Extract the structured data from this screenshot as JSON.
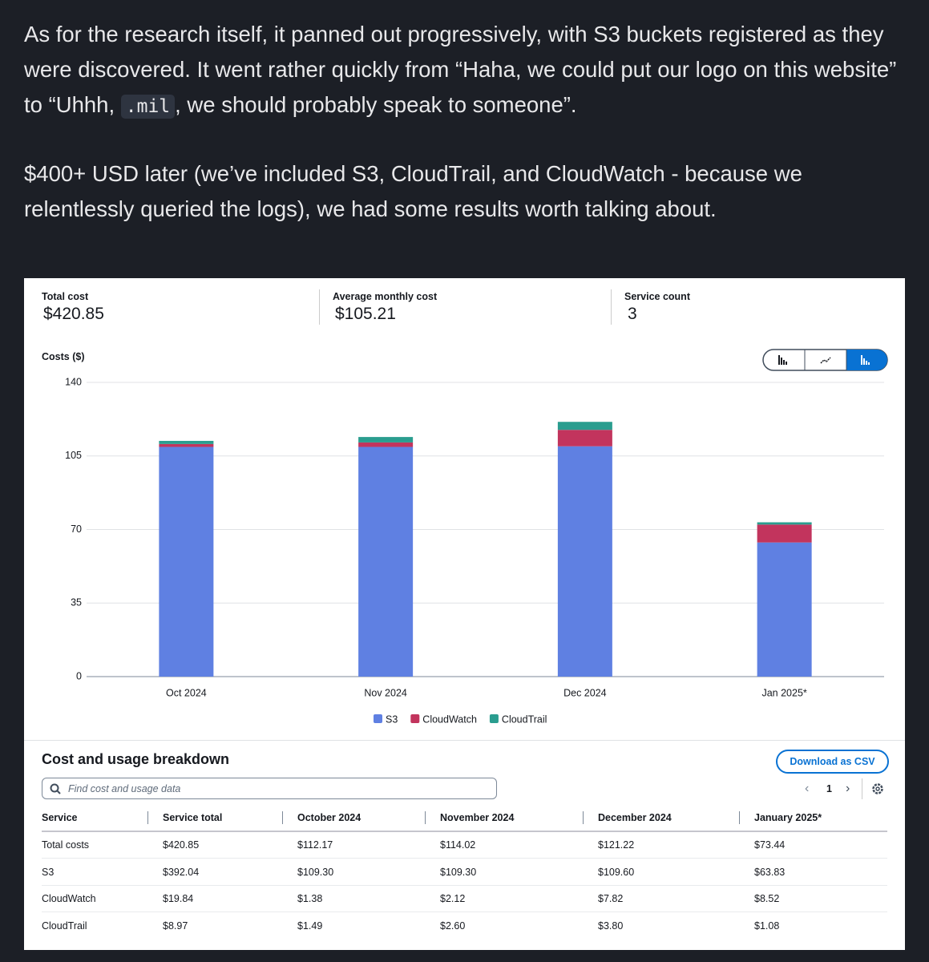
{
  "article": {
    "paragraphs": [
      {
        "before": "As for the research itself, it panned out progressively, with S3 buckets registered as they were discovered. It went rather quickly from “Haha, we could put our logo on this website” to “Uhhh, ",
        "code": ".mil",
        "after": ", we should probably speak to someone”."
      },
      {
        "text": "$400+ USD later (we’ve included S3, CloudTrail, and CloudWatch - because we relentlessly queried the logs), we had some results worth talking about."
      }
    ]
  },
  "summary": [
    {
      "label": "Total cost",
      "value": "$420.85"
    },
    {
      "label": "Average monthly cost",
      "value": "$105.21"
    },
    {
      "label": "Service count",
      "value": "3"
    }
  ],
  "chart_data": {
    "type": "stacked_bar",
    "y_label": "Costs ($)",
    "categories": [
      "Oct 2024",
      "Nov 2024",
      "Dec 2024",
      "Jan 2025*"
    ],
    "series": [
      {
        "name": "S3",
        "color": "#5f80e2",
        "values": [
          109.3,
          109.3,
          109.6,
          63.83
        ]
      },
      {
        "name": "CloudWatch",
        "color": "#c2345d",
        "values": [
          1.38,
          2.12,
          7.82,
          8.52
        ]
      },
      {
        "name": "CloudTrail",
        "color": "#2a9d8f",
        "values": [
          1.49,
          2.6,
          3.8,
          1.08
        ]
      }
    ],
    "ylim": [
      0,
      140
    ],
    "yticks": [
      0,
      35,
      70,
      105,
      140
    ],
    "grid": true
  },
  "breakdown": {
    "title": "Cost and usage breakdown",
    "download": "Download as CSV",
    "search_placeholder": "Find cost and usage data",
    "page": "1",
    "columns": [
      "Service",
      "Service total",
      "October 2024",
      "November 2024",
      "December 2024",
      "January 2025*"
    ],
    "rows": [
      [
        "Total costs",
        "$420.85",
        "$112.17",
        "$114.02",
        "$121.22",
        "$73.44"
      ],
      [
        "S3",
        "$392.04",
        "$109.30",
        "$109.30",
        "$109.60",
        "$63.83"
      ],
      [
        "CloudWatch",
        "$19.84",
        "$1.38",
        "$2.12",
        "$7.82",
        "$8.52"
      ],
      [
        "CloudTrail",
        "$8.97",
        "$1.49",
        "$2.60",
        "$3.80",
        "$1.08"
      ]
    ]
  }
}
